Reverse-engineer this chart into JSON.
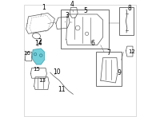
{
  "bg_color": "#ffffff",
  "border_color": "#cccccc",
  "highlight_color": "#5bc8d4",
  "line_color": "#555555",
  "font_size": 5.5
}
